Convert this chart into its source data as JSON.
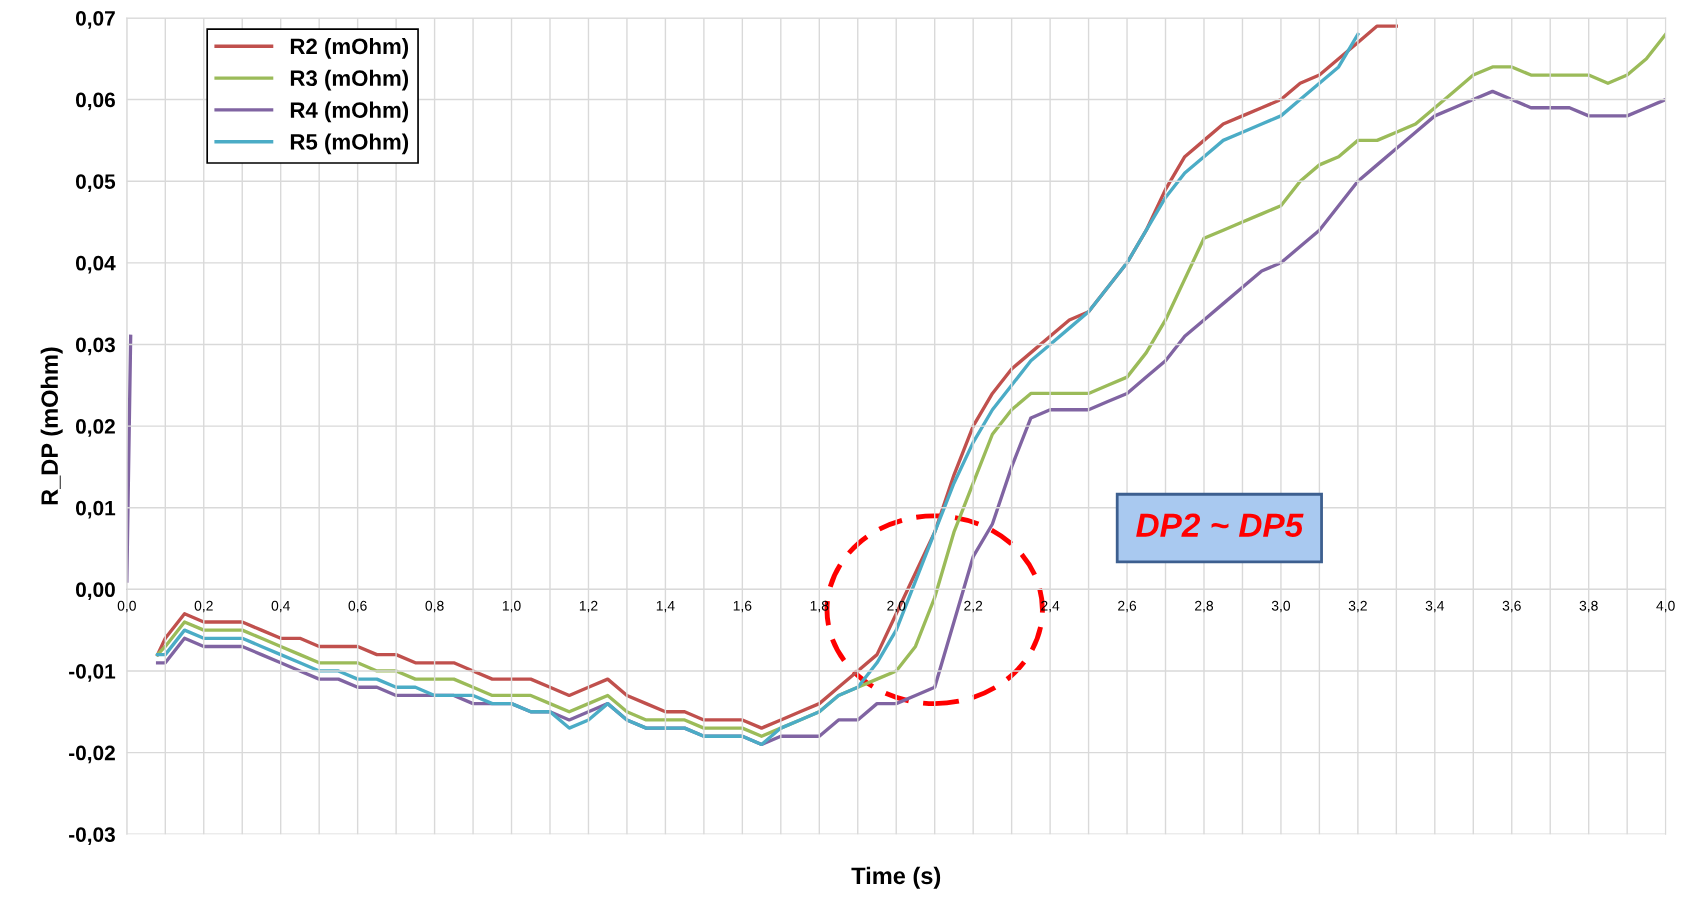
{
  "chart_data": {
    "type": "line",
    "xlabel": "Time (s)",
    "ylabel": "R_DP (mOhm)",
    "annotations": [
      "DP2 ~ DP5"
    ],
    "x": [
      0,
      0.01,
      0.02,
      0.03,
      0.05,
      0.07,
      0.08,
      0.1,
      0.15,
      0.2,
      0.25,
      0.3,
      0.35,
      0.4,
      0.45,
      0.5,
      0.55,
      0.6,
      0.65,
      0.7,
      0.75,
      0.8,
      0.85,
      0.9,
      0.95,
      1.0,
      1.05,
      1.1,
      1.15,
      1.2,
      1.25,
      1.3,
      1.35,
      1.4,
      1.45,
      1.5,
      1.55,
      1.6,
      1.65,
      1.7,
      1.75,
      1.8,
      1.85,
      1.9,
      1.95,
      2.0,
      2.05,
      2.1,
      2.15,
      2.2,
      2.25,
      2.3,
      2.35,
      2.4,
      2.45,
      2.5,
      2.55,
      2.6,
      2.65,
      2.7,
      2.75,
      2.8,
      2.85,
      2.9,
      2.95,
      3.0,
      3.05,
      3.1,
      3.15,
      3.2,
      3.25,
      3.3,
      3.35,
      3.4,
      3.45,
      3.5,
      3.55,
      3.6,
      3.65,
      3.7,
      3.75,
      3.8,
      3.85,
      3.9,
      3.95,
      4.0
    ],
    "series": [
      {
        "name": "R2 (mOhm)",
        "color": "#c0504d",
        "values": [
          null,
          null,
          null,
          null,
          null,
          null,
          -0.008,
          -0.006,
          -0.003,
          -0.004,
          -0.004,
          -0.004,
          -0.005,
          -0.006,
          -0.006,
          -0.007,
          -0.007,
          -0.007,
          -0.008,
          -0.008,
          -0.009,
          -0.009,
          -0.009,
          -0.01,
          -0.011,
          -0.011,
          -0.011,
          -0.012,
          -0.013,
          -0.012,
          -0.011,
          -0.013,
          -0.014,
          -0.015,
          -0.015,
          -0.016,
          -0.016,
          -0.016,
          -0.017,
          -0.016,
          -0.015,
          -0.014,
          -0.012,
          -0.01,
          -0.008,
          -0.003,
          0.002,
          0.007,
          0.014,
          0.02,
          0.024,
          0.027,
          0.029,
          0.031,
          0.033,
          0.034,
          0.037,
          0.04,
          0.044,
          0.049,
          0.053,
          0.055,
          0.057,
          0.058,
          0.059,
          0.06,
          0.062,
          0.063,
          0.065,
          0.067,
          0.069,
          0.069,
          null,
          null,
          null,
          null,
          null,
          null,
          null,
          null,
          null,
          null,
          null,
          null,
          null,
          null
        ]
      },
      {
        "name": "R3 (mOhm)",
        "color": "#9bbb59",
        "values": [
          null,
          null,
          null,
          null,
          null,
          null,
          -0.008,
          -0.007,
          -0.004,
          -0.005,
          -0.005,
          -0.005,
          -0.006,
          -0.007,
          -0.008,
          -0.009,
          -0.009,
          -0.009,
          -0.01,
          -0.01,
          -0.011,
          -0.011,
          -0.011,
          -0.012,
          -0.013,
          -0.013,
          -0.013,
          -0.014,
          -0.015,
          -0.014,
          -0.013,
          -0.015,
          -0.016,
          -0.016,
          -0.016,
          -0.017,
          -0.017,
          -0.017,
          -0.018,
          -0.017,
          -0.016,
          -0.015,
          -0.013,
          -0.012,
          -0.011,
          -0.01,
          -0.007,
          -0.001,
          0.007,
          0.013,
          0.019,
          0.022,
          0.024,
          0.024,
          0.024,
          0.024,
          0.025,
          0.026,
          0.029,
          0.033,
          0.038,
          0.043,
          0.044,
          0.045,
          0.046,
          0.047,
          0.05,
          0.052,
          0.053,
          0.055,
          0.055,
          0.056,
          0.057,
          0.059,
          0.061,
          0.063,
          0.064,
          0.064,
          0.063,
          0.063,
          0.063,
          0.063,
          0.062,
          0.063,
          0.065,
          0.068
        ]
      },
      {
        "name": "R4 (mOhm)",
        "color": "#8064a2",
        "values": [
          0.001,
          0.031,
          null,
          null,
          null,
          null,
          -0.009,
          -0.009,
          -0.006,
          -0.007,
          -0.007,
          -0.007,
          -0.008,
          -0.009,
          -0.01,
          -0.011,
          -0.011,
          -0.012,
          -0.012,
          -0.013,
          -0.013,
          -0.013,
          -0.013,
          -0.014,
          -0.014,
          -0.014,
          -0.015,
          -0.015,
          -0.016,
          -0.015,
          -0.014,
          -0.016,
          -0.017,
          -0.017,
          -0.017,
          -0.018,
          -0.018,
          -0.018,
          -0.019,
          -0.018,
          -0.018,
          -0.018,
          -0.016,
          -0.016,
          -0.014,
          -0.014,
          -0.013,
          -0.012,
          -0.004,
          0.004,
          0.008,
          0.015,
          0.021,
          0.022,
          0.022,
          0.022,
          0.023,
          0.024,
          0.026,
          0.028,
          0.031,
          0.033,
          0.035,
          0.037,
          0.039,
          0.04,
          0.042,
          0.044,
          0.047,
          0.05,
          0.052,
          0.054,
          0.056,
          0.058,
          0.059,
          0.06,
          0.061,
          0.06,
          0.059,
          0.059,
          0.059,
          0.058,
          0.058,
          0.058,
          0.059,
          0.06
        ]
      },
      {
        "name": "R5 (mOhm)",
        "color": "#4bacc6",
        "values": [
          null,
          null,
          null,
          null,
          null,
          null,
          -0.008,
          -0.008,
          -0.005,
          -0.006,
          -0.006,
          -0.006,
          -0.007,
          -0.008,
          -0.009,
          -0.01,
          -0.01,
          -0.011,
          -0.011,
          -0.012,
          -0.012,
          -0.013,
          -0.013,
          -0.013,
          -0.014,
          -0.014,
          -0.015,
          -0.015,
          -0.017,
          -0.016,
          -0.014,
          -0.016,
          -0.017,
          -0.017,
          -0.017,
          -0.018,
          -0.018,
          -0.018,
          -0.019,
          -0.017,
          -0.016,
          -0.015,
          -0.013,
          -0.012,
          -0.009,
          -0.005,
          0.001,
          0.007,
          0.013,
          0.018,
          0.022,
          0.025,
          0.028,
          0.03,
          0.032,
          0.034,
          0.037,
          0.04,
          0.044,
          0.048,
          0.051,
          0.053,
          0.055,
          0.056,
          0.057,
          0.058,
          0.06,
          0.062,
          0.064,
          0.068,
          null,
          null,
          null,
          null,
          null,
          null,
          null,
          null,
          null,
          null,
          null,
          null,
          null,
          null,
          null,
          null
        ]
      }
    ],
    "xlim": [
      0,
      4.0
    ],
    "xticks": [
      {
        "value": 0,
        "label": "0,0"
      },
      {
        "value": 0.1,
        "label": null
      },
      {
        "value": 0.2,
        "label": "0,2"
      },
      {
        "value": 0.3,
        "label": null
      },
      {
        "value": 0.4,
        "label": "0,4"
      },
      {
        "value": 0.5,
        "label": null
      },
      {
        "value": 0.6,
        "label": "0,6"
      },
      {
        "value": 0.7,
        "label": null
      },
      {
        "value": 0.8,
        "label": "0,8"
      },
      {
        "value": 0.9,
        "label": null
      },
      {
        "value": 1.0,
        "label": "1,0"
      },
      {
        "value": 1.1,
        "label": null
      },
      {
        "value": 1.2,
        "label": "1,2"
      },
      {
        "value": 1.3,
        "label": null
      },
      {
        "value": 1.4,
        "label": "1,4"
      },
      {
        "value": 1.5,
        "label": null
      },
      {
        "value": 1.6,
        "label": "1,6"
      },
      {
        "value": 1.7,
        "label": null
      },
      {
        "value": 1.8,
        "label": "1,8"
      },
      {
        "value": 1.9,
        "label": null
      },
      {
        "value": 2.0,
        "label": "2,0"
      },
      {
        "value": 2.1,
        "label": null
      },
      {
        "value": 2.2,
        "label": "2,2"
      },
      {
        "value": 2.3,
        "label": null
      },
      {
        "value": 2.4,
        "label": "2,4"
      },
      {
        "value": 2.5,
        "label": null
      },
      {
        "value": 2.6,
        "label": "2,6"
      },
      {
        "value": 2.7,
        "label": null
      },
      {
        "value": 2.8,
        "label": "2,8"
      },
      {
        "value": 2.9,
        "label": null
      },
      {
        "value": 3.0,
        "label": "3,0"
      },
      {
        "value": 3.1,
        "label": null
      },
      {
        "value": 3.2,
        "label": "3,2"
      },
      {
        "value": 3.3,
        "label": null
      },
      {
        "value": 3.4,
        "label": "3,4"
      },
      {
        "value": 3.5,
        "label": null
      },
      {
        "value": 3.6,
        "label": "3,6"
      },
      {
        "value": 3.7,
        "label": null
      },
      {
        "value": 3.8,
        "label": "3,8"
      },
      {
        "value": 3.9,
        "label": null
      },
      {
        "value": 4.0,
        "label": "4,0"
      }
    ],
    "ylim": [
      -0.03,
      0.07
    ],
    "yticks": [
      {
        "value": -0.03,
        "label": "-0,03"
      },
      {
        "value": -0.02,
        "label": "-0,02"
      },
      {
        "value": -0.01,
        "label": "-0,01"
      },
      {
        "value": 0,
        "label": "0,00"
      },
      {
        "value": 0.01,
        "label": "0,01"
      },
      {
        "value": 0.02,
        "label": "0,02"
      },
      {
        "value": 0.03,
        "label": "0,03"
      },
      {
        "value": 0.04,
        "label": "0,04"
      },
      {
        "value": 0.05,
        "label": "0,05"
      },
      {
        "value": 0.06,
        "label": "0,06"
      },
      {
        "value": 0.07,
        "label": "0,07"
      }
    ],
    "grid": true,
    "legend": "top left",
    "marker": "none",
    "line_style": "solid"
  }
}
